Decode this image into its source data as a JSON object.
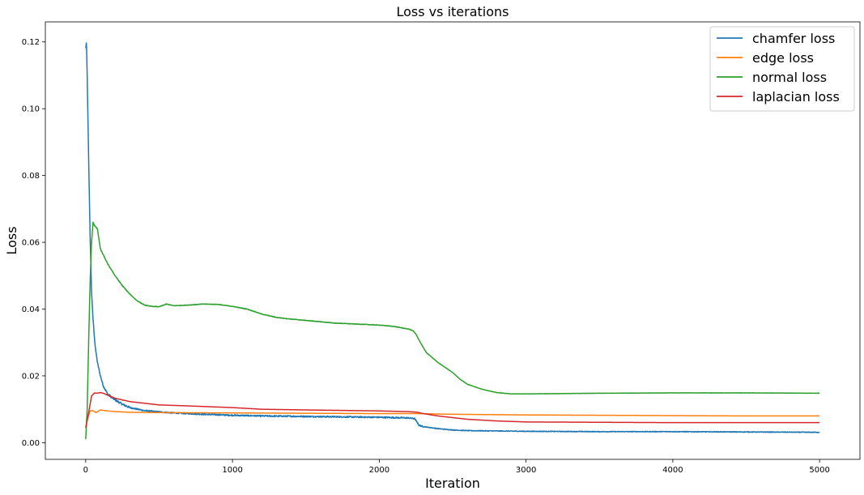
{
  "chart_data": {
    "type": "line",
    "title": "Loss vs iterations",
    "xlabel": "Iteration",
    "ylabel": "Loss",
    "xlim": [
      -275,
      5275
    ],
    "ylim": [
      -0.005,
      0.126
    ],
    "xticks": [
      0,
      1000,
      2000,
      3000,
      4000,
      5000
    ],
    "xtick_labels": [
      "0",
      "1000",
      "2000",
      "3000",
      "4000",
      "5000"
    ],
    "yticks": [
      0.0,
      0.02,
      0.04,
      0.06,
      0.08,
      0.1,
      0.12
    ],
    "ytick_labels": [
      "0.00",
      "0.02",
      "0.04",
      "0.06",
      "0.08",
      "0.10",
      "0.12"
    ],
    "grid": false,
    "legend_position": "top-right",
    "series": [
      {
        "name": "chamfer loss",
        "color": "#1f77b4",
        "noise": 0.0004,
        "x": [
          0,
          5,
          10,
          20,
          30,
          40,
          50,
          60,
          70,
          80,
          100,
          120,
          150,
          200,
          250,
          300,
          400,
          500,
          600,
          800,
          1000,
          1200,
          1400,
          1600,
          1800,
          2000,
          2200,
          2240,
          2260,
          2270,
          2300,
          2400,
          2500,
          2600,
          2800,
          3000,
          3500,
          4000,
          4500,
          5000
        ],
        "y": [
          0.118,
          0.12,
          0.11,
          0.085,
          0.062,
          0.045,
          0.037,
          0.031,
          0.027,
          0.024,
          0.02,
          0.017,
          0.0145,
          0.0128,
          0.0115,
          0.0105,
          0.0096,
          0.0092,
          0.0089,
          0.0085,
          0.0082,
          0.008,
          0.0079,
          0.0078,
          0.0077,
          0.0076,
          0.0074,
          0.0072,
          0.006,
          0.0052,
          0.0048,
          0.0042,
          0.0038,
          0.0036,
          0.0035,
          0.0034,
          0.0033,
          0.0033,
          0.0032,
          0.0031
        ]
      },
      {
        "name": "edge loss",
        "color": "#ff7f0e",
        "noise": 0.0,
        "x": [
          0,
          15,
          30,
          50,
          70,
          100,
          150,
          200,
          300,
          500,
          1000,
          1500,
          2000,
          2250,
          2500,
          3000,
          3500,
          4000,
          4500,
          5000
        ],
        "y": [
          0.0045,
          0.0075,
          0.0095,
          0.0096,
          0.009,
          0.0098,
          0.0095,
          0.0093,
          0.0091,
          0.009,
          0.0089,
          0.0088,
          0.0087,
          0.0087,
          0.0085,
          0.0083,
          0.0082,
          0.0081,
          0.008,
          0.008
        ]
      },
      {
        "name": "normal loss",
        "color": "#2ca02c",
        "noise": 0.00015,
        "x": [
          0,
          10,
          20,
          30,
          40,
          50,
          60,
          80,
          100,
          150,
          200,
          250,
          300,
          350,
          400,
          450,
          500,
          550,
          600,
          700,
          800,
          900,
          1000,
          1100,
          1200,
          1300,
          1400,
          1500,
          1600,
          1700,
          1800,
          1900,
          2000,
          2100,
          2200,
          2230,
          2250,
          2280,
          2320,
          2400,
          2500,
          2550,
          2600,
          2700,
          2800,
          2900,
          3000,
          3500,
          4000,
          4500,
          5000
        ],
        "y": [
          0.001,
          0.01,
          0.03,
          0.048,
          0.06,
          0.066,
          0.065,
          0.064,
          0.058,
          0.0535,
          0.05,
          0.047,
          0.0445,
          0.0425,
          0.0412,
          0.0408,
          0.0407,
          0.0415,
          0.041,
          0.0412,
          0.0415,
          0.0414,
          0.0408,
          0.04,
          0.0385,
          0.0375,
          0.037,
          0.0366,
          0.0362,
          0.0358,
          0.0356,
          0.0354,
          0.0352,
          0.0348,
          0.034,
          0.0335,
          0.0325,
          0.03,
          0.027,
          0.024,
          0.021,
          0.019,
          0.0175,
          0.016,
          0.015,
          0.0146,
          0.0146,
          0.0148,
          0.0149,
          0.0149,
          0.0148
        ]
      },
      {
        "name": "laplacian loss",
        "color": "#d62728",
        "noise": 0.0,
        "x": [
          0,
          20,
          40,
          60,
          80,
          100,
          120,
          150,
          200,
          300,
          500,
          700,
          1000,
          1200,
          1500,
          2000,
          2200,
          2260,
          2300,
          2400,
          2600,
          2800,
          3000,
          3500,
          4000,
          4500,
          5000
        ],
        "y": [
          0.0045,
          0.009,
          0.014,
          0.0149,
          0.0148,
          0.015,
          0.0148,
          0.0142,
          0.0133,
          0.0123,
          0.0113,
          0.011,
          0.0105,
          0.01,
          0.0098,
          0.0095,
          0.0093,
          0.0091,
          0.0087,
          0.008,
          0.007,
          0.0065,
          0.0062,
          0.0061,
          0.006,
          0.006,
          0.006
        ]
      }
    ]
  }
}
